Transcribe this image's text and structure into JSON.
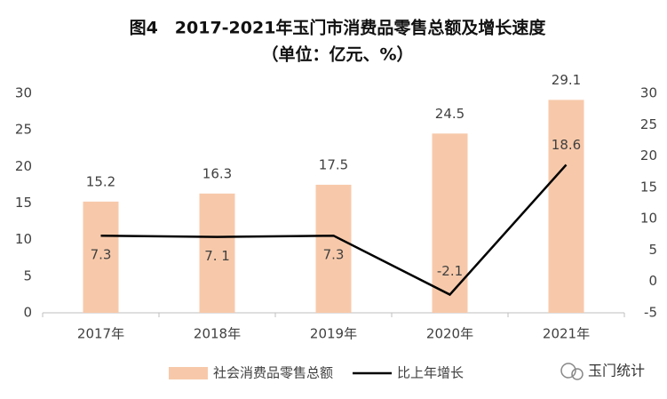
{
  "chart_data": {
    "type": "combo",
    "title": "图4　2017-2021年玉门市消费品零售总额及增长速度",
    "subtitle": "（单位：亿元、%）",
    "categories": [
      "2017年",
      "2018年",
      "2019年",
      "2020年",
      "2021年"
    ],
    "series": [
      {
        "name": "社会消费品零售总额",
        "type": "bar",
        "color": "#f7c9aa",
        "values": [
          15.2,
          16.3,
          17.5,
          24.5,
          29.1
        ]
      },
      {
        "name": "比上年增长",
        "type": "line",
        "axis": "y2",
        "color": "#000000",
        "values": [
          7.3,
          7.1,
          7.3,
          -2.1,
          18.6
        ],
        "value_labels": [
          "7.3",
          "7. 1",
          "7.3",
          "-2.1",
          "18.6"
        ]
      }
    ],
    "ylim": [
      0,
      30
    ],
    "yticks": [
      0,
      5,
      10,
      15,
      20,
      25,
      30
    ],
    "y2lim": [
      -5,
      30
    ],
    "y2ticks": [
      -5,
      0,
      5,
      10,
      15,
      20,
      25,
      30
    ],
    "grid": false,
    "legend": "bottom",
    "watermark": "玉门统计"
  }
}
